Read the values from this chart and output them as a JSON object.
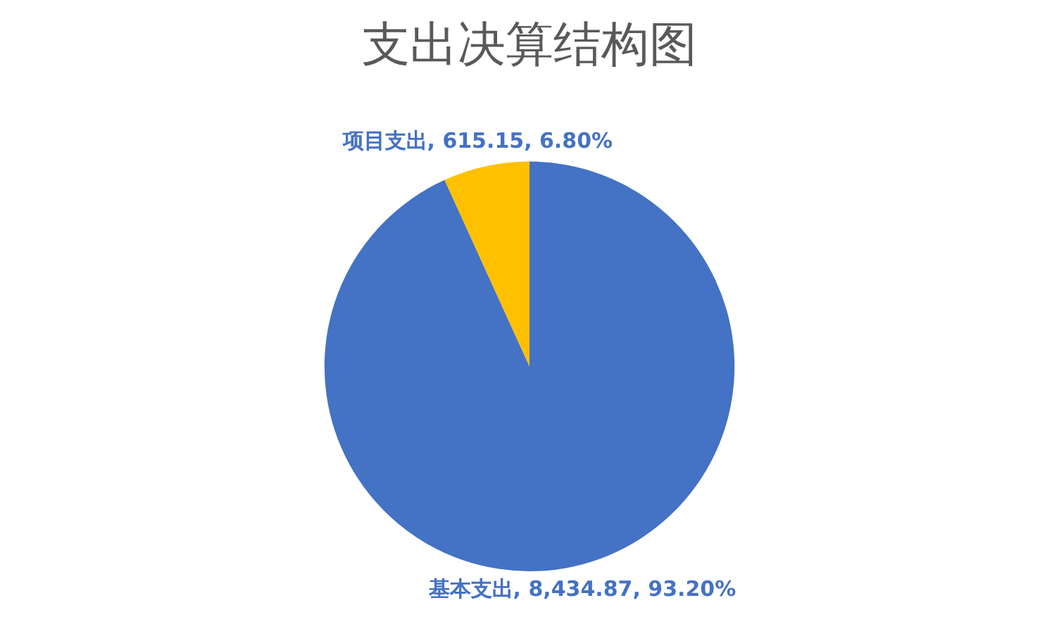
{
  "chart_data": {
    "type": "pie",
    "title": "支出决算结构图",
    "categories": [
      "基本支出",
      "项目支出"
    ],
    "values": [
      8434.87,
      615.15
    ],
    "colors": [
      "#4472c4",
      "#ffc000"
    ],
    "value_labels": [
      "8,434.87, 93.20%",
      "615.15, 6.80%"
    ],
    "legend": false
  }
}
